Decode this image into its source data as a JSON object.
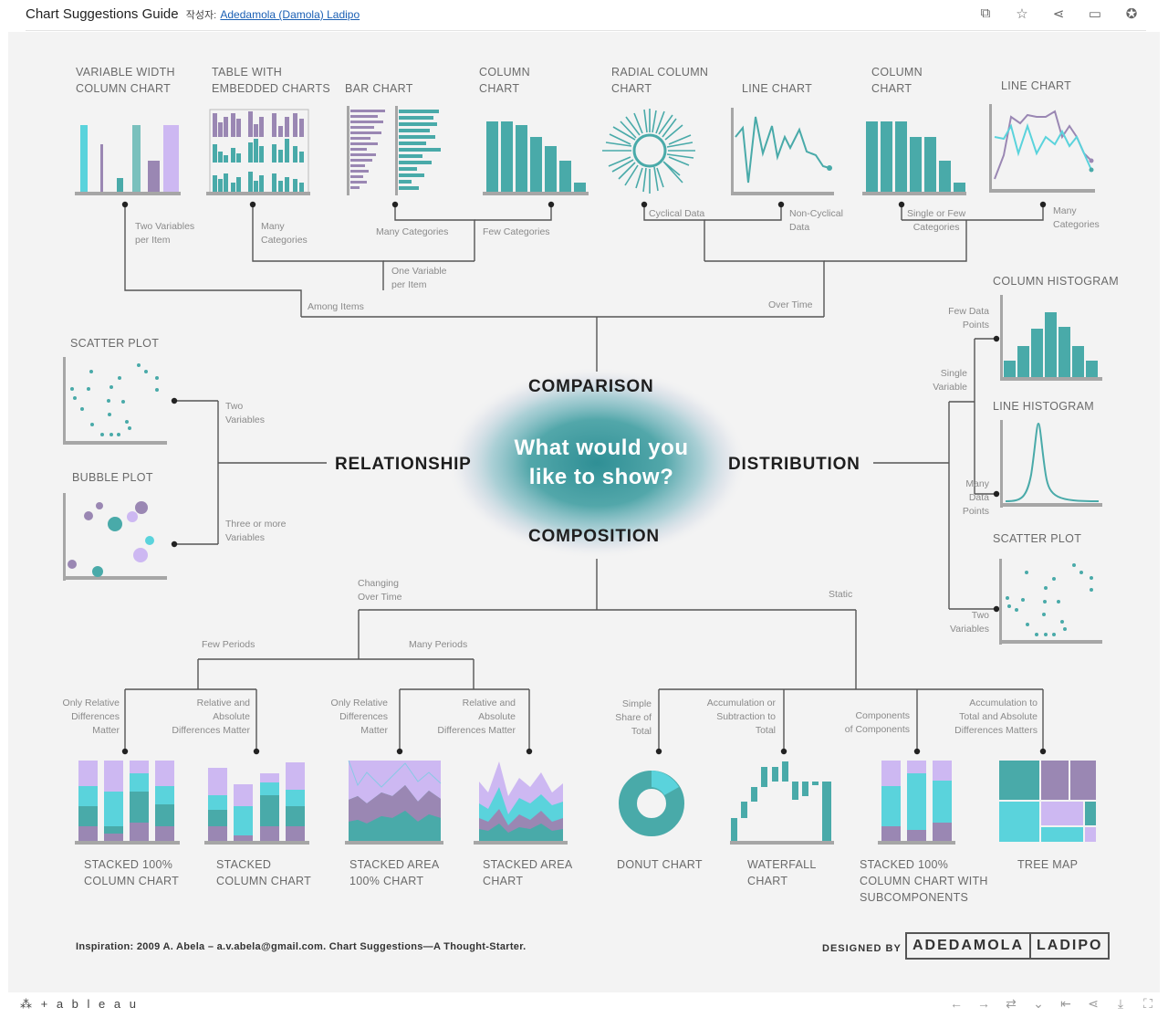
{
  "header": {
    "title": "Chart Suggestions Guide",
    "by_label": "작성자:",
    "author": "Adedamola (Damola) Ladipo",
    "icons": [
      "duplicate-icon",
      "favorite-icon",
      "share-icon",
      "comment-icon",
      "award-icon"
    ]
  },
  "center": {
    "question_line1": "What would you",
    "question_line2": "like to show?"
  },
  "categories": {
    "comparison": "COMPARISON",
    "relationship": "RELATIONSHIP",
    "distribution": "DISTRIBUTION",
    "composition": "COMPOSITION"
  },
  "comparison": {
    "charts": [
      {
        "l1": "VARIABLE WIDTH",
        "l2": "COLUMN CHART"
      },
      {
        "l1": "TABLE WITH",
        "l2": "EMBEDDED CHARTS"
      },
      {
        "l1": "BAR CHART",
        "l2": ""
      },
      {
        "l1": "COLUMN",
        "l2": "CHART"
      },
      {
        "l1": "RADIAL COLUMN",
        "l2": "CHART"
      },
      {
        "l1": "LINE CHART",
        "l2": ""
      },
      {
        "l1": "COLUMN",
        "l2": "CHART"
      },
      {
        "l1": "LINE CHART",
        "l2": ""
      }
    ],
    "labels": {
      "two_vars_1": "Two Variables",
      "two_vars_2": "per Item",
      "many_cat_1": "Many",
      "many_cat_2": "Categories",
      "many_categories": "Many Categories",
      "few_categories": "Few Categories",
      "one_var_1": "One Variable",
      "one_var_2": "per Item",
      "among_items": "Among Items",
      "cyclical": "Cyclical Data",
      "noncyc_1": "Non-Cyclical",
      "noncyc_2": "Data",
      "single_few_1": "Single or Few",
      "single_few_2": "Categories",
      "many_cat2_1": "Many",
      "many_cat2_2": "Categories",
      "over_time": "Over Time"
    }
  },
  "relationship": {
    "scatter": "SCATTER PLOT",
    "bubble": "BUBBLE PLOT",
    "two_1": "Two",
    "two_2": "Variables",
    "three_1": "Three or more",
    "three_2": "Variables"
  },
  "distribution": {
    "col_hist": "COLUMN HISTOGRAM",
    "line_hist": "LINE HISTOGRAM",
    "scatter": "SCATTER PLOT",
    "few_1": "Few Data",
    "few_2": "Points",
    "single_1": "Single",
    "single_2": "Variable",
    "many_1": "Many",
    "many_2": "Data",
    "many_3": "Points",
    "two_1": "Two",
    "two_2": "Variables"
  },
  "composition": {
    "changing_1": "Changing",
    "changing_2": "Over Time",
    "static": "Static",
    "few_periods": "Few Periods",
    "many_periods": "Many Periods",
    "rel1_1": "Only Relative",
    "rel1_2": "Differences",
    "rel1_3": "Matter",
    "abs1_1": "Relative and",
    "abs1_2": "Absolute",
    "abs1_3": "Differences Matter",
    "rel2_1": "Only Relative",
    "rel2_2": "Differences",
    "rel2_3": "Matter",
    "abs2_1": "Relative and",
    "abs2_2": "Absolute",
    "abs2_3": "Differences Matter",
    "simple_1": "Simple",
    "simple_2": "Share of",
    "simple_3": "Total",
    "accum_1": "Accumulation or",
    "accum_2": "Subtraction to",
    "accum_3": "Total",
    "comp_1": "Components",
    "comp_2": "of Components",
    "acc2_1": "Accumulation to",
    "acc2_2": "Total and Absolute",
    "acc2_3": "Differences Matters",
    "charts": [
      {
        "l1": "STACKED 100%",
        "l2": "COLUMN CHART",
        "l3": ""
      },
      {
        "l1": "STACKED",
        "l2": "COLUMN CHART",
        "l3": ""
      },
      {
        "l1": "STACKED AREA",
        "l2": "100% CHART",
        "l3": ""
      },
      {
        "l1": "STACKED AREA",
        "l2": "CHART",
        "l3": ""
      },
      {
        "l1": "DONUT CHART",
        "l2": "",
        "l3": ""
      },
      {
        "l1": "WATERFALL",
        "l2": "CHART",
        "l3": ""
      },
      {
        "l1": "STACKED 100%",
        "l2": "COLUMN CHART WITH",
        "l3": "SUBCOMPONENTS"
      },
      {
        "l1": "TREE MAP",
        "l2": "",
        "l3": ""
      }
    ]
  },
  "footer_note": "Inspiration: 2009 A. Abela – a.v.abela@gmail.com. Chart Suggestions—A Thought-Starter.",
  "designed_by": "DESIGNED BY",
  "designer_first": "ADEDAMOLA",
  "designer_last": "LADIPO",
  "tableau_brand": "+ a b l e a u",
  "colors": {
    "teal": "#49aaa9",
    "cyan": "#5ad3dc",
    "purple": "#9a87b3",
    "lavender": "#cdb8f2",
    "axis": "#a6a6a6",
    "line": "#555555",
    "bg": "#f3f3f3"
  }
}
